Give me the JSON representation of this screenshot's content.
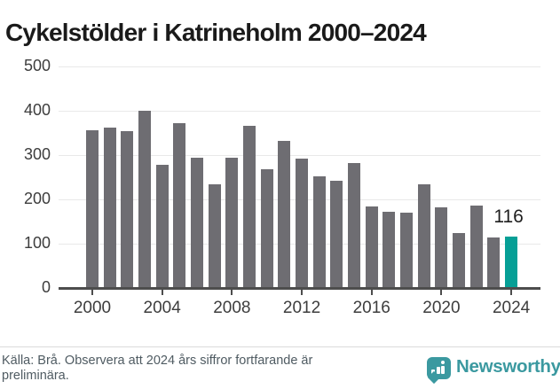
{
  "title": "Cykelstölder i Katrineholm 2000–2024",
  "chart_data": {
    "type": "bar",
    "title": "Cykelstölder i Katrineholm 2000–2024",
    "categories": [
      2000,
      2001,
      2002,
      2003,
      2004,
      2005,
      2006,
      2007,
      2008,
      2009,
      2010,
      2011,
      2012,
      2013,
      2014,
      2015,
      2016,
      2017,
      2018,
      2019,
      2020,
      2021,
      2022,
      2023,
      2024
    ],
    "values": [
      356,
      362,
      354,
      400,
      278,
      373,
      295,
      234,
      295,
      366,
      269,
      332,
      292,
      252,
      243,
      283,
      184,
      172,
      170,
      235,
      182,
      124,
      187,
      115,
      116
    ],
    "xlabel": "",
    "ylabel": "",
    "ylim": [
      0,
      500
    ],
    "yticks": [
      0,
      100,
      200,
      300,
      400,
      500
    ],
    "xticks": [
      2000,
      2004,
      2008,
      2012,
      2016,
      2020,
      2024
    ],
    "grid": "horizontal",
    "legend": "none",
    "highlight_index": 24,
    "value_label": "116",
    "bar_color": "#6e6d72",
    "highlight_color": "#069f96",
    "gridline_color": "#e9e9e9",
    "axis_color": "#4d4d4d",
    "tick_label_color": "#3d3d3d"
  },
  "footer": {
    "source_line1": "Källa: Brå. Observera att 2024 års siffror fortfarande är",
    "source_line2": "preliminära.",
    "brand": "Newsworthy",
    "brand_color": "#3b99a0"
  }
}
